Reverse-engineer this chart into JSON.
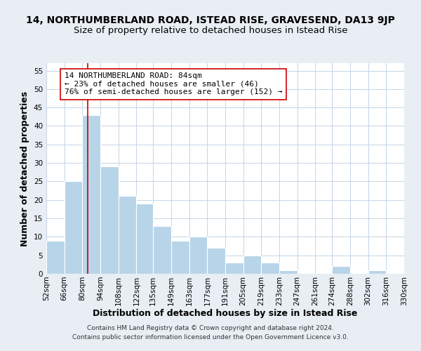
{
  "title": "14, NORTHUMBERLAND ROAD, ISTEAD RISE, GRAVESEND, DA13 9JP",
  "subtitle": "Size of property relative to detached houses in Istead Rise",
  "xlabel": "Distribution of detached houses by size in Istead Rise",
  "ylabel": "Number of detached properties",
  "footer1": "Contains HM Land Registry data © Crown copyright and database right 2024.",
  "footer2": "Contains public sector information licensed under the Open Government Licence v3.0.",
  "bin_edges": [
    52,
    66,
    80,
    94,
    108,
    122,
    135,
    149,
    163,
    177,
    191,
    205,
    219,
    233,
    247,
    261,
    274,
    288,
    302,
    316,
    330
  ],
  "bin_labels": [
    "52sqm",
    "66sqm",
    "80sqm",
    "94sqm",
    "108sqm",
    "122sqm",
    "135sqm",
    "149sqm",
    "163sqm",
    "177sqm",
    "191sqm",
    "205sqm",
    "219sqm",
    "233sqm",
    "247sqm",
    "261sqm",
    "274sqm",
    "288sqm",
    "302sqm",
    "316sqm",
    "330sqm"
  ],
  "counts": [
    9,
    25,
    43,
    29,
    21,
    19,
    13,
    9,
    10,
    7,
    3,
    5,
    3,
    1,
    0,
    0,
    2,
    0,
    1,
    0
  ],
  "bar_color": "#b8d4e8",
  "reference_line_x": 84,
  "reference_line_color": "#cc0000",
  "annotation_line1": "14 NORTHUMBERLAND ROAD: 84sqm",
  "annotation_line2": "← 23% of detached houses are smaller (46)",
  "annotation_line3": "76% of semi-detached houses are larger (152) →",
  "annotation_box_edge_color": "#cc0000",
  "ylim": [
    0,
    57
  ],
  "yticks": [
    0,
    5,
    10,
    15,
    20,
    25,
    30,
    35,
    40,
    45,
    50,
    55
  ],
  "background_color": "#e8eef4",
  "plot_bg_color": "#ffffff",
  "grid_color": "#c5d5e5",
  "title_fontsize": 10,
  "subtitle_fontsize": 9.5,
  "axis_label_fontsize": 9,
  "tick_fontsize": 7.5,
  "annotation_fontsize": 8,
  "footer_fontsize": 6.5
}
